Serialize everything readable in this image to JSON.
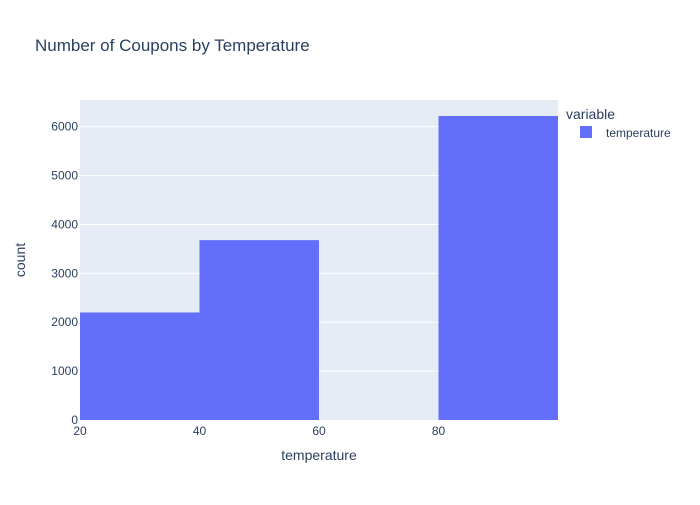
{
  "chart_data": {
    "type": "bar",
    "title": "Number of Coupons by Temperature",
    "xlabel": "temperature",
    "ylabel": "count",
    "bins": [
      {
        "x0": 20,
        "x1": 40,
        "value": 2200
      },
      {
        "x0": 40,
        "x1": 60,
        "value": 3680
      },
      {
        "x0": 60,
        "x1": 80,
        "value": 0
      },
      {
        "x0": 80,
        "x1": 100,
        "value": 6220
      }
    ],
    "xlim": [
      20,
      100
    ],
    "ylim": [
      0,
      6547
    ],
    "x_ticks": [
      20,
      40,
      60,
      80
    ],
    "y_ticks": [
      0,
      1000,
      2000,
      3000,
      4000,
      5000,
      6000
    ],
    "grid": true,
    "legend": {
      "title": "variable",
      "placement": "top-right",
      "entries": [
        {
          "name": "temperature",
          "color": "#636efa"
        }
      ]
    }
  },
  "colors": {
    "bar": "#636efa",
    "plot_background": "#e5ecf6",
    "grid": "#ffffff",
    "text": "#2a3f5f"
  }
}
